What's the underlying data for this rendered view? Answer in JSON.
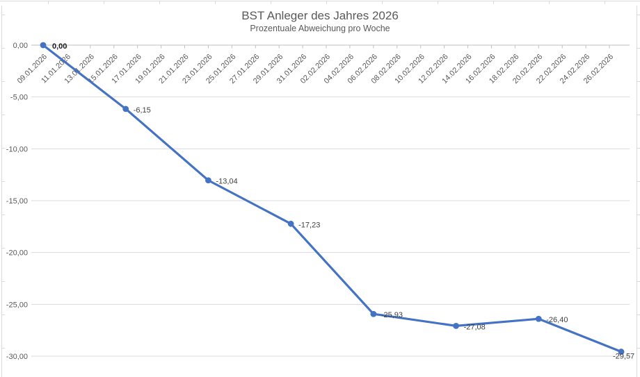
{
  "colors": {
    "series": "#4472C4",
    "gridline": "#D9D9D9",
    "axis": "#BFBFBF",
    "axis_label": "#595959",
    "data_label": "#404040",
    "first_data_label": "#1a1a1a",
    "title": "#595959"
  },
  "chart_data": {
    "type": "line",
    "title": "BST Anleger des Jahres 2026",
    "subtitle": "Prozentuale Abweichung pro Woche",
    "x": [
      "09.01.2026",
      "16.01.2026",
      "23.01.2026",
      "30.01.2026",
      "06.02.2026",
      "13.02.2026",
      "20.02.2026",
      "27.02.2026"
    ],
    "day_offsets": [
      0,
      7,
      14,
      21,
      28,
      35,
      42,
      49
    ],
    "values": [
      0,
      -6.15,
      -13.04,
      -17.23,
      -25.93,
      -27.08,
      -26.4,
      -29.57
    ],
    "point_labels": [
      "0,00",
      "-6,15",
      "-13,04",
      "-17,23",
      "-25,93",
      "-27,08",
      "-26,40",
      "-29,57"
    ],
    "x_tick_labels": [
      "09.01.2026",
      "11.01.2026",
      "13.01.2026",
      "15.01.2026",
      "17.01.2026",
      "19.01.2026",
      "21.01.2026",
      "23.01.2026",
      "25.01.2026",
      "27.01.2026",
      "29.01.2026",
      "31.01.2026",
      "02.02.2026",
      "04.02.2026",
      "06.02.2026",
      "08.02.2026",
      "10.02.2026",
      "12.02.2026",
      "14.02.2026",
      "16.02.2026",
      "18.02.2026",
      "20.02.2026",
      "22.02.2026",
      "24.02.2026",
      "26.02.2026"
    ],
    "x_tick_step_days": 2,
    "y_ticks": [
      {
        "value": 0,
        "label": "0,00"
      },
      {
        "value": -5,
        "label": "-5,00"
      },
      {
        "value": -10,
        "label": "-10,00"
      },
      {
        "value": -15,
        "label": "-15,00"
      },
      {
        "value": -20,
        "label": "-20,00"
      },
      {
        "value": -25,
        "label": "-25,00"
      },
      {
        "value": -30,
        "label": "-30,00"
      }
    ],
    "ylim": [
      -30,
      0
    ],
    "grid": true,
    "legend": false,
    "marker": "circle"
  }
}
